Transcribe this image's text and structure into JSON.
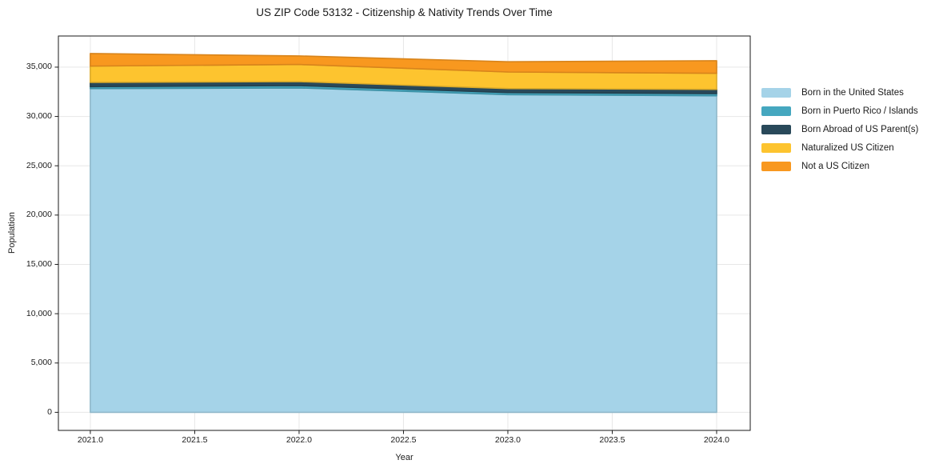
{
  "title": "US ZIP Code 53132 - Citizenship & Nativity Trends Over Time",
  "chart_data": {
    "type": "area",
    "stacked": true,
    "title": "US ZIP Code 53132 - Citizenship & Nativity Trends Over Time",
    "xlabel": "Year",
    "ylabel": "Population",
    "x": [
      2021,
      2022,
      2023,
      2024
    ],
    "series": [
      {
        "name": "Born in the United States",
        "color": "#a5d3e8",
        "values": [
          32830,
          32890,
          32215,
          32100
        ]
      },
      {
        "name": "Born in Puerto Rico / Islands",
        "color": "#45a7bf",
        "values": [
          195,
          240,
          210,
          220
        ]
      },
      {
        "name": "Born Abroad of US Parent(s)",
        "color": "#29495a",
        "values": [
          430,
          405,
          405,
          430
        ]
      },
      {
        "name": "Naturalized US Citizen",
        "color": "#fdc42f",
        "values": [
          1650,
          1735,
          1680,
          1625
        ]
      },
      {
        "name": "Not a US Citizen",
        "color": "#f8981f",
        "values": [
          1275,
          865,
          1035,
          1275
        ]
      }
    ],
    "stacked_totals": [
      36380,
      36135,
      35545,
      35650
    ],
    "x_tick_values": [
      2021.0,
      2021.5,
      2022.0,
      2022.5,
      2023.0,
      2023.5,
      2024.0
    ],
    "x_tick_labels": [
      "2021.0",
      "2021.5",
      "2022.0",
      "2022.5",
      "2023.0",
      "2023.5",
      "2024.0"
    ],
    "y_tick_values": [
      0,
      5000,
      10000,
      15000,
      20000,
      25000,
      30000,
      35000
    ],
    "y_tick_labels": [
      "0",
      "5,000",
      "10,000",
      "15,000",
      "20,000",
      "25,000",
      "30,000",
      "35,000"
    ],
    "xlim": [
      2020.847,
      2024.161
    ],
    "ylim": [
      -1834,
      38158
    ],
    "grid": true,
    "grid_color": "#e7e7e7",
    "axes_border_color": "#1a1a1a",
    "tick_color": "#1c1c1c",
    "legend_position": "right"
  }
}
